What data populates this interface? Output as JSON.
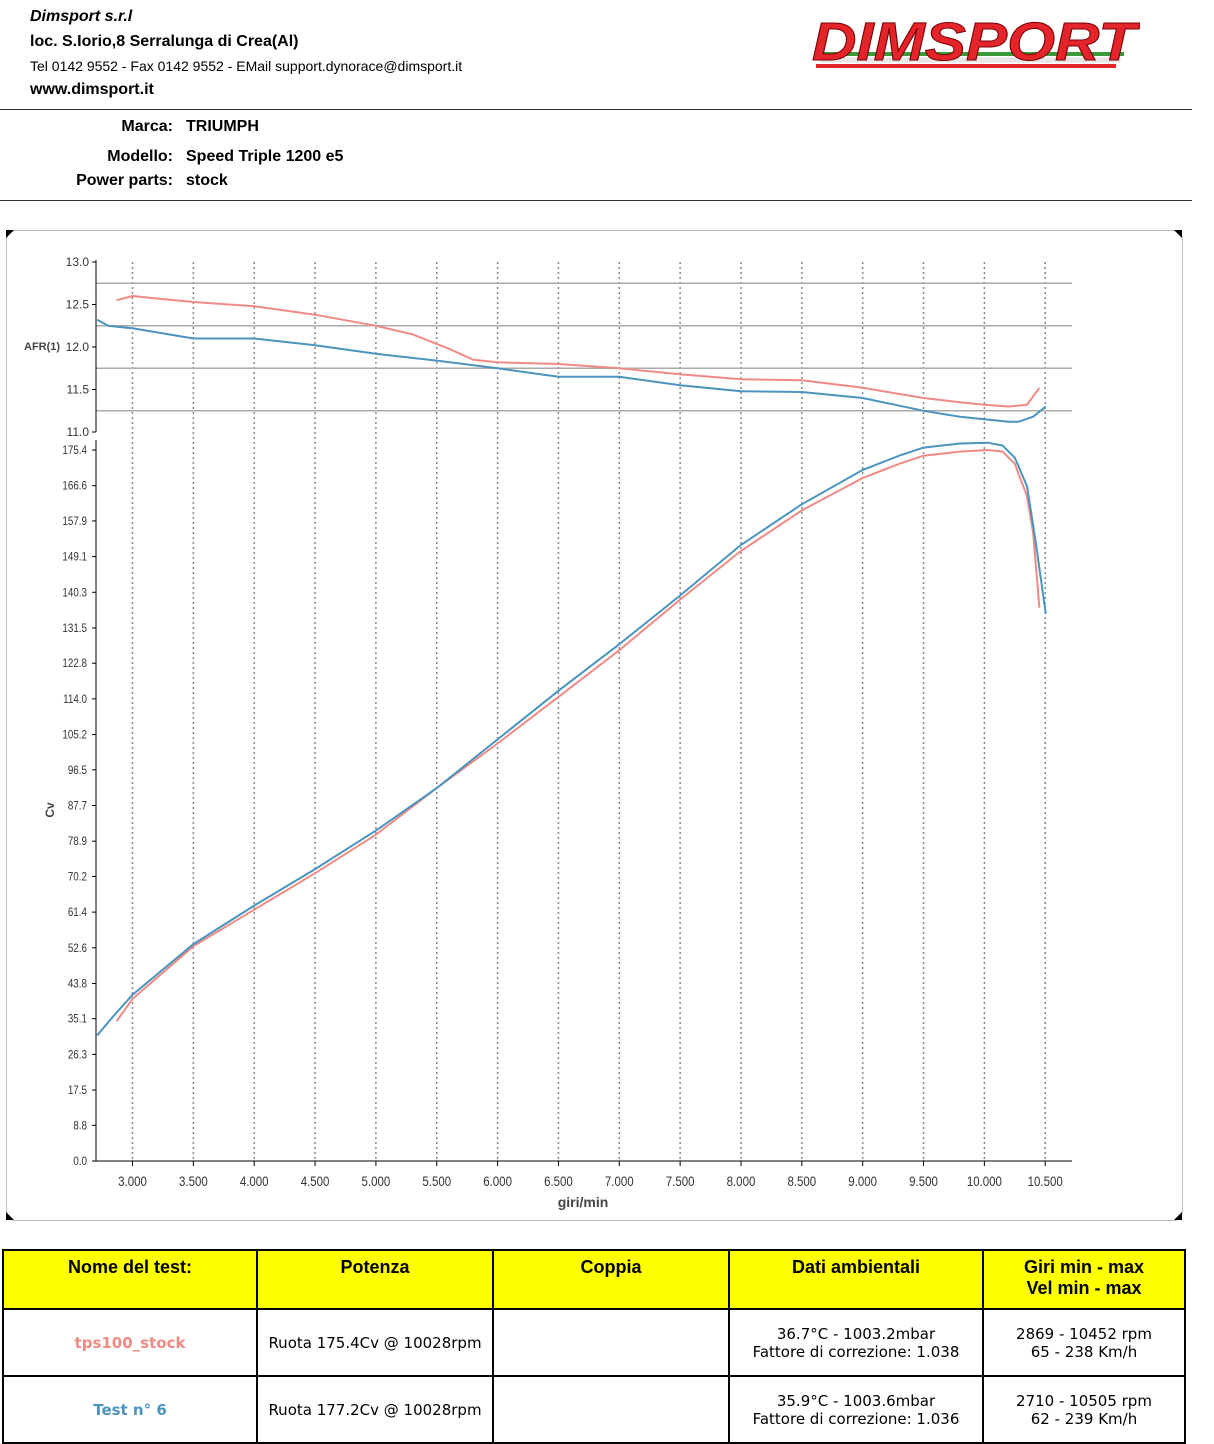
{
  "company": {
    "name": "Dimsport s.r.l",
    "address": "loc. S.Iorio,8 Serralunga di Crea(Al)",
    "contacts": "Tel 0142 9552 - Fax 0142 9552 - EMail support.dynorace@dimsport.it",
    "website": "www.dimsport.it",
    "logo_text": "DIMSPORT"
  },
  "vehicle": {
    "marca_label": "Marca:",
    "marca": "TRIUMPH",
    "modello_label": "Modello:",
    "modello": "Speed Triple 1200 e5",
    "parts_label": "Power parts:",
    "parts": "stock"
  },
  "colors": {
    "red": "#f08a84",
    "blue": "#4a94c0",
    "yellow": "#ffff00"
  },
  "chart_data": {
    "type": "line",
    "xlabel": "giri/min",
    "x_ticks": [
      "3.000",
      "3.500",
      "4.000",
      "4.500",
      "5.000",
      "5.500",
      "6.000",
      "6.500",
      "7.000",
      "7.500",
      "8.000",
      "8.500",
      "9.000",
      "9.500",
      "10.000",
      "10.500"
    ],
    "xlim": [
      2700,
      10720
    ],
    "afr": {
      "ylabel": "AFR(1)",
      "ylim": [
        11.0,
        13.0
      ],
      "y_ticks": [
        "11.0",
        "11.5",
        "12.0",
        "12.5",
        "13.0"
      ],
      "series": [
        {
          "name": "tps100_stock",
          "color": "#f08a84",
          "x": [
            2869,
            3000,
            3200,
            3500,
            4000,
            4500,
            5000,
            5300,
            5600,
            5800,
            6000,
            6500,
            7000,
            7500,
            8000,
            8500,
            9000,
            9500,
            9800,
            10000,
            10200,
            10350,
            10452
          ],
          "y": [
            12.55,
            12.6,
            12.57,
            12.53,
            12.48,
            12.38,
            12.25,
            12.15,
            11.98,
            11.85,
            11.82,
            11.8,
            11.75,
            11.68,
            11.62,
            11.61,
            11.52,
            11.4,
            11.35,
            11.32,
            11.3,
            11.32,
            11.52
          ]
        },
        {
          "name": "Test n° 6",
          "color": "#4a94c0",
          "x": [
            2710,
            2800,
            3000,
            3500,
            4000,
            4500,
            5000,
            5500,
            6000,
            6500,
            7000,
            7500,
            8000,
            8500,
            9000,
            9500,
            9800,
            10000,
            10200,
            10280,
            10400,
            10505
          ],
          "y": [
            12.32,
            12.25,
            12.22,
            12.1,
            12.1,
            12.02,
            11.92,
            11.84,
            11.75,
            11.65,
            11.65,
            11.55,
            11.48,
            11.47,
            11.4,
            11.25,
            11.18,
            11.15,
            11.12,
            11.12,
            11.18,
            11.3
          ]
        }
      ]
    },
    "power": {
      "ylabel": "Cv",
      "ylim": [
        0.0,
        178.0
      ],
      "y_ticks": [
        "0.0",
        "8.8",
        "17.5",
        "26.3",
        "35.1",
        "43.8",
        "52.6",
        "61.4",
        "70.2",
        "78.9",
        "87.7",
        "96.5",
        "105.2",
        "114.0",
        "122.8",
        "131.5",
        "140.3",
        "149.1",
        "157.9",
        "166.6",
        "175.4"
      ],
      "series": [
        {
          "name": "tps100_stock",
          "color": "#f08a84",
          "x": [
            2869,
            3000,
            3500,
            4000,
            4500,
            5000,
            5500,
            6000,
            6500,
            7000,
            7500,
            8000,
            8500,
            9000,
            9300,
            9500,
            9800,
            10028,
            10150,
            10250,
            10350,
            10400,
            10452
          ],
          "y": [
            34.5,
            40.0,
            53.0,
            62.0,
            71.0,
            80.5,
            92.0,
            103.0,
            114.5,
            126.0,
            138.5,
            150.5,
            160.5,
            168.5,
            172.0,
            174.0,
            175.0,
            175.4,
            175.0,
            172.0,
            164.0,
            155.0,
            136.5
          ]
        },
        {
          "name": "Test n° 6",
          "color": "#4a94c0",
          "x": [
            2710,
            2850,
            3000,
            3500,
            4000,
            4500,
            5000,
            5500,
            6000,
            6500,
            7000,
            7500,
            8000,
            8500,
            9000,
            9300,
            9500,
            9800,
            10028,
            10150,
            10250,
            10350,
            10420,
            10505
          ],
          "y": [
            31.0,
            36.0,
            41.0,
            53.5,
            63.0,
            72.0,
            81.5,
            92.0,
            104.0,
            116.0,
            127.5,
            139.5,
            152.0,
            162.0,
            170.5,
            174.0,
            176.0,
            177.0,
            177.2,
            176.5,
            173.5,
            166.5,
            153.0,
            135.0
          ]
        }
      ]
    }
  },
  "results": {
    "headers": [
      "Nome del test:",
      "Potenza",
      "Coppia",
      "Dati ambientali",
      "Giri min - max",
      "Vel  min - max"
    ],
    "rows": [
      {
        "name": "tps100_stock",
        "potenza": "Ruota 175.4Cv @ 10028rpm",
        "coppia": "",
        "amb1": "36.7°C - 1003.2mbar",
        "amb2": "Fattore di correzione: 1.038",
        "giri": "2869 - 10452 rpm",
        "vel": "65 - 238 Km/h",
        "color": "#f08a84"
      },
      {
        "name": "Test n° 6",
        "potenza": "Ruota 177.2Cv @ 10028rpm",
        "coppia": "",
        "amb1": "35.9°C - 1003.6mbar",
        "amb2": "Fattore di correzione: 1.036",
        "giri": "2710 - 10505 rpm",
        "vel": "62 - 239 Km/h",
        "color": "#4a94c0"
      }
    ]
  }
}
